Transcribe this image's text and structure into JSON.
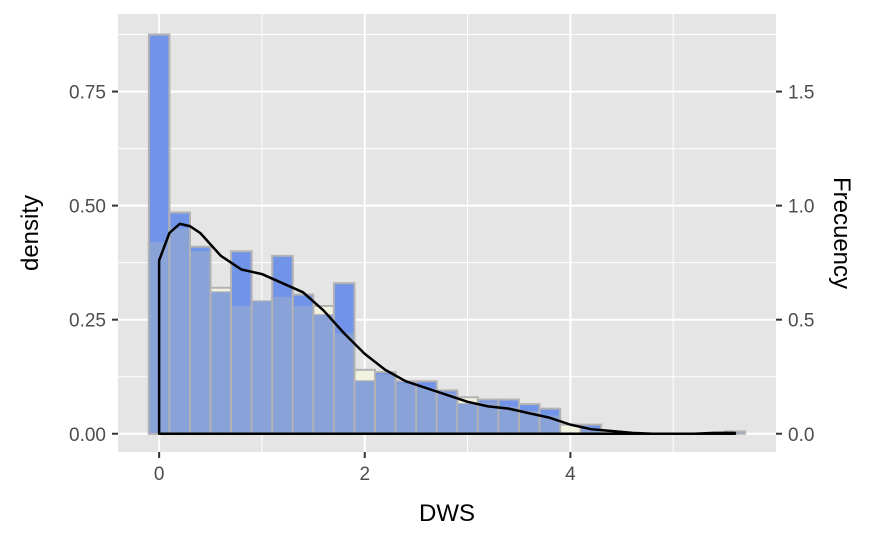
{
  "chart_data": {
    "type": "bar",
    "description_kind": "histogram with density overlay",
    "xlabel": "DWS",
    "ylabel": "density",
    "y2label": "Frecuency",
    "xlim": [
      -0.4,
      6.0
    ],
    "ylim": [
      -0.04,
      0.92
    ],
    "y2lim": [
      -0.08,
      1.84
    ],
    "x_ticks": [
      0,
      2,
      4
    ],
    "x_tick_labels": [
      "0",
      "2",
      "4"
    ],
    "y_ticks": [
      0,
      0.25,
      0.5,
      0.75
    ],
    "y_tick_labels": [
      "0.00",
      "0.25",
      "0.50",
      "0.75"
    ],
    "y2_ticks": [
      0,
      0.5,
      1.0,
      1.5
    ],
    "y2_tick_labels": [
      "0.0",
      "0.5",
      "1.0",
      "1.5"
    ],
    "grid": true,
    "bin_width": 0.2,
    "bin_centers": [
      0.0,
      0.2,
      0.4,
      0.6,
      0.8,
      1.0,
      1.2,
      1.4,
      1.6,
      1.8,
      2.0,
      2.2,
      2.4,
      2.6,
      2.8,
      3.0,
      3.2,
      3.4,
      3.6,
      3.8,
      4.0,
      4.2,
      4.4,
      4.6,
      4.8,
      5.0,
      5.2,
      5.4,
      5.6
    ],
    "series": [
      {
        "role": "frequency-bars",
        "axis": "right",
        "values": [
          1.75,
          0.97,
          0.82,
          0.62,
          0.8,
          0.58,
          0.78,
          0.61,
          0.52,
          0.66,
          0.23,
          0.27,
          0.23,
          0.23,
          0.19,
          0.13,
          0.15,
          0.15,
          0.13,
          0.11,
          0.0,
          0.04,
          0.01,
          0.0,
          0.0,
          0.0,
          0.0,
          0.0,
          0.01
        ]
      },
      {
        "role": "density-bars",
        "axis": "left",
        "values": [
          0.42,
          0.45,
          0.4,
          0.32,
          0.28,
          0.29,
          0.3,
          0.28,
          0.28,
          0.22,
          0.14,
          0.13,
          0.11,
          0.1,
          0.09,
          0.08,
          0.07,
          0.06,
          0.05,
          0.04,
          0.02,
          0.01,
          0.0,
          0.0,
          0.0,
          0.0,
          0.0,
          0.0,
          0.0
        ]
      },
      {
        "role": "density-curve",
        "axis": "left",
        "x": [
          0.0,
          0.1,
          0.2,
          0.3,
          0.4,
          0.6,
          0.8,
          1.0,
          1.2,
          1.4,
          1.6,
          1.8,
          2.0,
          2.2,
          2.4,
          2.6,
          2.8,
          3.0,
          3.2,
          3.4,
          3.6,
          3.8,
          4.0,
          4.2,
          4.4,
          4.6,
          4.8,
          5.0,
          5.2,
          5.4,
          5.6
        ],
        "y": [
          0.38,
          0.44,
          0.46,
          0.455,
          0.44,
          0.39,
          0.36,
          0.35,
          0.33,
          0.31,
          0.27,
          0.22,
          0.175,
          0.14,
          0.115,
          0.1,
          0.085,
          0.07,
          0.06,
          0.055,
          0.045,
          0.035,
          0.02,
          0.01,
          0.006,
          0.002,
          0.0,
          0.0,
          0.0,
          0.002,
          0.002
        ]
      }
    ],
    "colors": {
      "panel_bg": "#e5e5e5",
      "grid": "#ffffff",
      "frequency_fill": "#7193e8",
      "density_fill": "#f2f2e1",
      "overlap_fill": "#89a2d8",
      "bar_border": "#b3b3b3",
      "curve": "#000000"
    }
  }
}
